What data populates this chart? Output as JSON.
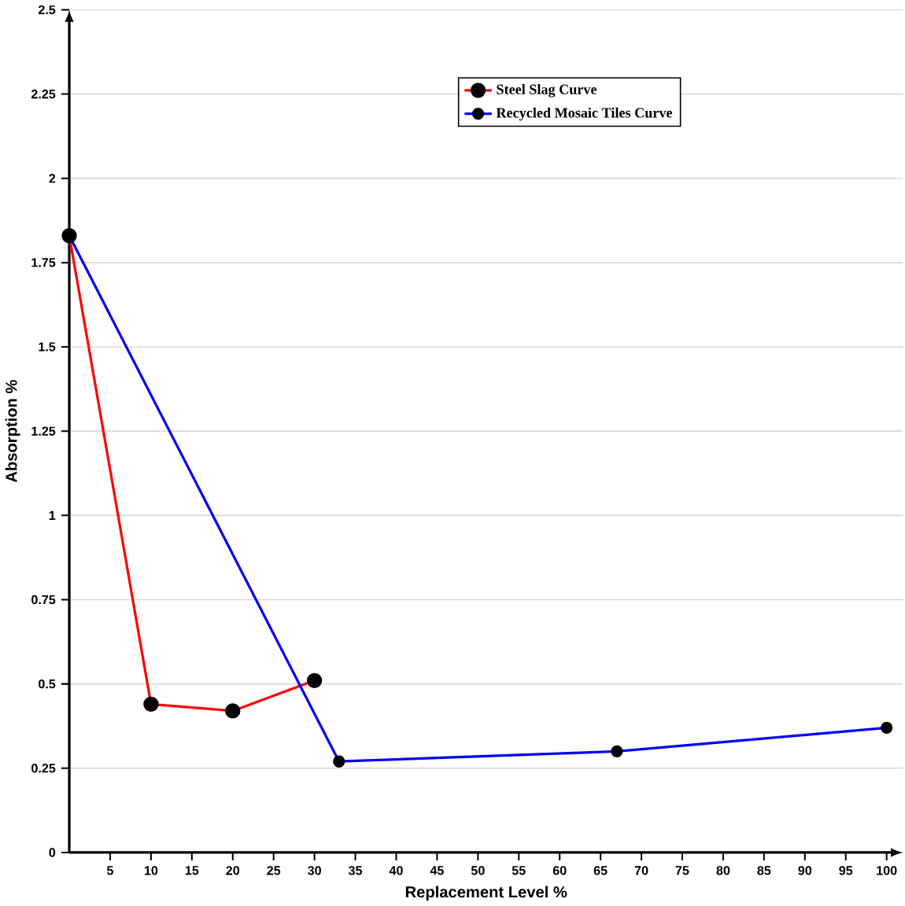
{
  "chart_data": {
    "type": "line",
    "xlabel": "Replacement Level %",
    "ylabel": "Absorption %",
    "xlim": [
      0,
      102
    ],
    "xticks": [
      5,
      10,
      15,
      20,
      25,
      30,
      35,
      40,
      45,
      50,
      55,
      60,
      65,
      70,
      75,
      80,
      85,
      90,
      95,
      100
    ],
    "ylim": [
      0,
      2.5
    ],
    "yticks": [
      0,
      0.25,
      0.5,
      0.75,
      1,
      1.25,
      1.5,
      1.75,
      2,
      2.25,
      2.5
    ],
    "grid": "y",
    "legend": "top",
    "marker": "circle",
    "line_style": "solid",
    "series": [
      {
        "name": "Steel Slag Curve",
        "color": "#ff0000",
        "x": [
          0,
          10,
          20,
          30
        ],
        "values": [
          1.83,
          0.44,
          0.42,
          0.51
        ]
      },
      {
        "name": "Recycled Mosaic Tiles Curve",
        "color": "#0000ff",
        "x": [
          0,
          33,
          67,
          100
        ],
        "values": [
          1.83,
          0.27,
          0.3,
          0.37
        ]
      }
    ]
  }
}
